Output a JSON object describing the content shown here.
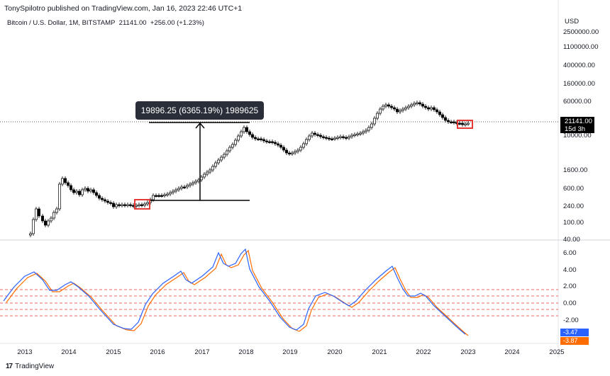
{
  "header": {
    "published": "TonySpilotro published on TradingView.com, Jan 16, 2023 22:46 UTC+1"
  },
  "symbol": {
    "name": "Bitcoin / U.S. Dollar, 1M, BITSTAMP",
    "price": "21141.00",
    "change": "+256.00 (+1.23%)"
  },
  "price_axis": {
    "currency": "USD",
    "labels": [
      "2500000.00",
      "1100000.00",
      "400000.00",
      "160000.00",
      "60000.00",
      "10000.00",
      "1600.00",
      "600.00",
      "240.00",
      "100.00",
      "40.00"
    ]
  },
  "current_price": {
    "value": "21141.00",
    "countdown": "15d 3h"
  },
  "oscillator_axis": {
    "labels": [
      "6.00",
      "4.00",
      "2.00",
      "0.00",
      "-2.00"
    ]
  },
  "oscillator_values": {
    "blue": "-3.47",
    "orange": "-3.87"
  },
  "time_axis": {
    "labels": [
      "2013",
      "2014",
      "2015",
      "2016",
      "2017",
      "2018",
      "2019",
      "2020",
      "2021",
      "2022",
      "2023",
      "2024",
      "2025"
    ]
  },
  "measure": {
    "text": "19896.25 (6365.19%) 1989625"
  },
  "footer": {
    "brand": "TradingView",
    "logo": "17"
  },
  "colors": {
    "highlight_box": "#e53935",
    "oscillator_blue": "#2962ff",
    "oscillator_orange": "#ff6d00",
    "level_lines": "#e53935",
    "blue_tag": "#2962ff",
    "orange_tag": "#ff6d00"
  }
}
